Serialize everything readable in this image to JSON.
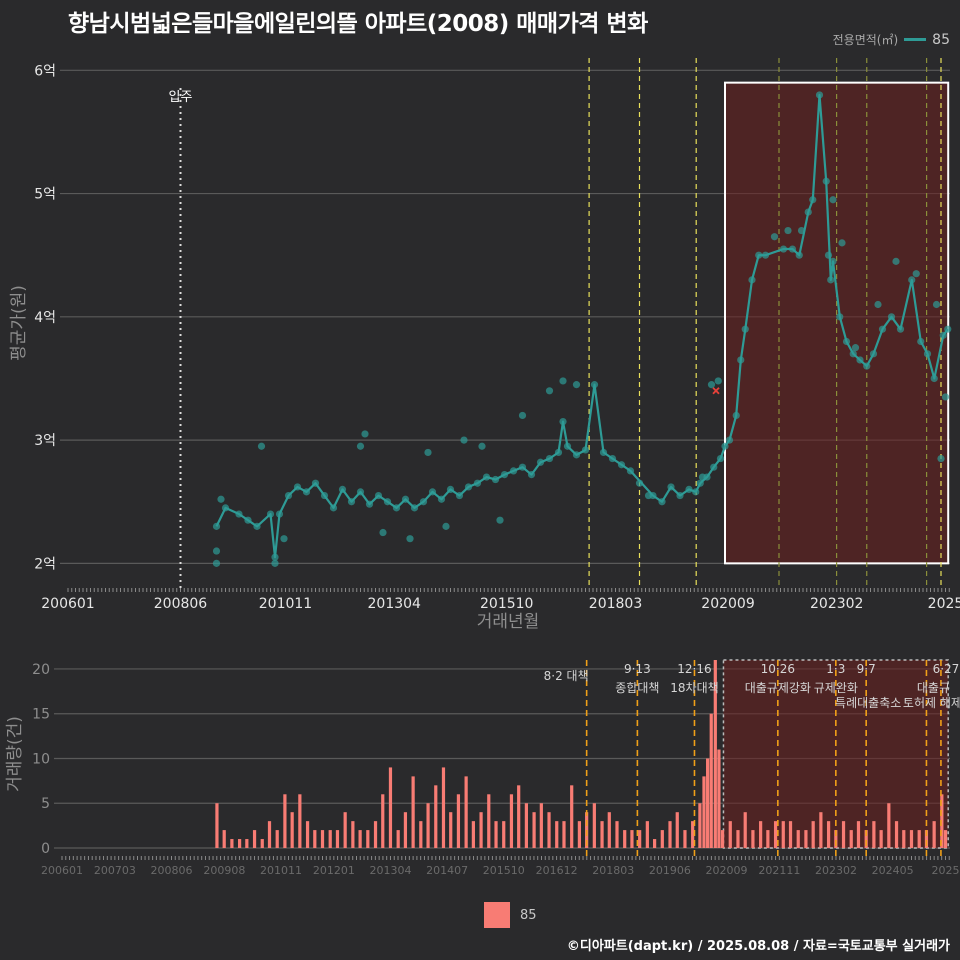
{
  "title": "향남시범넓은들마을에일린의뜰 아파트(2008) 매매가격 변화",
  "legend_top": {
    "title": "전용면적(㎡)",
    "value": "85",
    "color": "#2e9b96"
  },
  "legend_bottom": {
    "value": "85",
    "color": "#f87c74"
  },
  "credit": "©디아파트(dapt.kr) / 2025.08.08 / 자료=국토교통부 실거래가",
  "chart_data": [
    {
      "type": "line",
      "ylabel": "평균가(원)",
      "xlabel": "거래년월",
      "xlim": [
        2006.0,
        2025.6
      ],
      "ylim": [
        1.8,
        6.1
      ],
      "yticks": [
        2,
        3,
        4,
        5,
        6
      ],
      "ytick_labels": [
        "2억",
        "3억",
        "4억",
        "5억",
        "6억"
      ],
      "xticks": [
        2006.0,
        2008.5,
        2010.833,
        2013.25,
        2015.75,
        2018.167,
        2020.667,
        2023.083,
        2025.5
      ],
      "xtick_labels": [
        "200601",
        "200806",
        "201011",
        "201304",
        "201510",
        "201803",
        "202009",
        "202302",
        "2025"
      ],
      "move_in": {
        "x": 2008.5,
        "label": "입주"
      },
      "policy_lines": [
        2017.58,
        2018.7,
        2019.96,
        2021.8,
        2023.08,
        2023.75,
        2025.08,
        2025.4
      ],
      "highlight_box": {
        "x0": 2020.6,
        "x1": 2025.56,
        "y0": 2.0,
        "y1": 5.9
      },
      "series": [
        {
          "name": "85",
          "line": [
            [
              2009.3,
              2.3
            ],
            [
              2009.5,
              2.45
            ],
            [
              2009.8,
              2.4
            ],
            [
              2010.0,
              2.35
            ],
            [
              2010.2,
              2.3
            ],
            [
              2010.5,
              2.4
            ],
            [
              2010.6,
              2.05
            ],
            [
              2010.7,
              2.4
            ],
            [
              2010.9,
              2.55
            ],
            [
              2011.1,
              2.62
            ],
            [
              2011.3,
              2.58
            ],
            [
              2011.5,
              2.65
            ],
            [
              2011.7,
              2.55
            ],
            [
              2011.9,
              2.45
            ],
            [
              2012.1,
              2.6
            ],
            [
              2012.3,
              2.5
            ],
            [
              2012.5,
              2.58
            ],
            [
              2012.7,
              2.48
            ],
            [
              2012.9,
              2.55
            ],
            [
              2013.1,
              2.5
            ],
            [
              2013.3,
              2.45
            ],
            [
              2013.5,
              2.52
            ],
            [
              2013.7,
              2.45
            ],
            [
              2013.9,
              2.5
            ],
            [
              2014.1,
              2.58
            ],
            [
              2014.3,
              2.52
            ],
            [
              2014.5,
              2.6
            ],
            [
              2014.7,
              2.55
            ],
            [
              2014.9,
              2.62
            ],
            [
              2015.1,
              2.65
            ],
            [
              2015.3,
              2.7
            ],
            [
              2015.5,
              2.68
            ],
            [
              2015.7,
              2.72
            ],
            [
              2015.9,
              2.75
            ],
            [
              2016.1,
              2.78
            ],
            [
              2016.3,
              2.72
            ],
            [
              2016.5,
              2.82
            ],
            [
              2016.7,
              2.85
            ],
            [
              2016.9,
              2.9
            ],
            [
              2017.0,
              3.15
            ],
            [
              2017.1,
              2.95
            ],
            [
              2017.3,
              2.88
            ],
            [
              2017.5,
              2.92
            ],
            [
              2017.7,
              3.45
            ],
            [
              2017.9,
              2.9
            ],
            [
              2018.1,
              2.85
            ],
            [
              2018.3,
              2.8
            ],
            [
              2018.5,
              2.75
            ],
            [
              2019.0,
              2.55
            ],
            [
              2019.2,
              2.5
            ],
            [
              2019.4,
              2.62
            ],
            [
              2019.6,
              2.55
            ],
            [
              2019.8,
              2.6
            ],
            [
              2019.95,
              2.58
            ],
            [
              2020.05,
              2.65
            ],
            [
              2020.2,
              2.7
            ],
            [
              2020.35,
              2.78
            ],
            [
              2020.5,
              2.85
            ],
            [
              2020.6,
              2.95
            ],
            [
              2020.7,
              3.0
            ],
            [
              2020.85,
              3.2
            ],
            [
              2020.95,
              3.65
            ],
            [
              2021.05,
              3.9
            ],
            [
              2021.2,
              4.3
            ],
            [
              2021.35,
              4.5
            ],
            [
              2021.5,
              4.5
            ],
            [
              2021.9,
              4.55
            ],
            [
              2022.1,
              4.55
            ],
            [
              2022.25,
              4.5
            ],
            [
              2022.45,
              4.85
            ],
            [
              2022.55,
              4.95
            ],
            [
              2022.7,
              5.8
            ],
            [
              2022.85,
              5.1
            ],
            [
              2022.95,
              4.3
            ],
            [
              2023.0,
              4.45
            ],
            [
              2023.15,
              4.0
            ],
            [
              2023.3,
              3.8
            ],
            [
              2023.45,
              3.7
            ],
            [
              2023.6,
              3.65
            ],
            [
              2023.75,
              3.6
            ],
            [
              2023.9,
              3.7
            ],
            [
              2024.1,
              3.9
            ],
            [
              2024.3,
              4.0
            ],
            [
              2024.5,
              3.9
            ],
            [
              2024.75,
              4.3
            ],
            [
              2024.95,
              3.8
            ],
            [
              2025.1,
              3.7
            ],
            [
              2025.25,
              3.5
            ],
            [
              2025.45,
              3.85
            ],
            [
              2025.55,
              3.9
            ]
          ]
        }
      ],
      "scatter_extra": [
        [
          2009.3,
          2.1
        ],
        [
          2009.3,
          2.0
        ],
        [
          2009.4,
          2.52
        ],
        [
          2010.3,
          2.95
        ],
        [
          2010.6,
          2.0
        ],
        [
          2010.8,
          2.2
        ],
        [
          2012.5,
          2.95
        ],
        [
          2012.6,
          3.05
        ],
        [
          2013.0,
          2.25
        ],
        [
          2013.6,
          2.2
        ],
        [
          2014.0,
          2.9
        ],
        [
          2014.4,
          2.3
        ],
        [
          2014.8,
          3.0
        ],
        [
          2015.2,
          2.95
        ],
        [
          2015.6,
          2.35
        ],
        [
          2016.1,
          3.2
        ],
        [
          2016.7,
          3.4
        ],
        [
          2017.0,
          3.48
        ],
        [
          2017.3,
          3.45
        ],
        [
          2018.7,
          2.65
        ],
        [
          2018.9,
          2.55
        ],
        [
          2020.1,
          2.7
        ],
        [
          2020.3,
          3.45
        ],
        [
          2020.45,
          3.48
        ],
        [
          2021.7,
          4.65
        ],
        [
          2022.0,
          4.7
        ],
        [
          2022.3,
          4.7
        ],
        [
          2022.9,
          4.5
        ],
        [
          2023.0,
          4.95
        ],
        [
          2023.2,
          4.6
        ],
        [
          2023.5,
          3.75
        ],
        [
          2024.0,
          4.1
        ],
        [
          2024.4,
          4.45
        ],
        [
          2024.85,
          4.35
        ],
        [
          2025.3,
          4.1
        ],
        [
          2025.4,
          2.85
        ],
        [
          2025.5,
          3.35
        ]
      ],
      "special_marker": {
        "x": 2020.4,
        "y": 3.4,
        "color": "#e8413a"
      }
    },
    {
      "type": "bar",
      "ylabel": "거래량(건)",
      "xlim": [
        2006.0,
        2025.6
      ],
      "ylim": [
        0,
        21
      ],
      "yticks": [
        0,
        5,
        10,
        15,
        20
      ],
      "xtick_labels": [
        "200601",
        "200703",
        "200806",
        "200908",
        "201011",
        "201201",
        "201304",
        "201407",
        "201510",
        "201612",
        "201803",
        "201906",
        "202009",
        "202111",
        "202302",
        "202405",
        "2025"
      ],
      "xticks": [
        2006.0,
        2007.167,
        2008.417,
        2009.583,
        2010.833,
        2012.0,
        2013.25,
        2014.5,
        2015.75,
        2016.917,
        2018.167,
        2019.417,
        2020.667,
        2021.833,
        2023.083,
        2024.333,
        2025.5
      ],
      "policy_lines": [
        2017.58,
        2018.7,
        2019.96,
        2021.8,
        2023.08,
        2023.75,
        2025.08,
        2025.4
      ],
      "highlight_box": {
        "x0": 2020.6,
        "x1": 2025.56,
        "y0": 0,
        "y1": 21
      },
      "annotations": [
        {
          "x": 2017.58,
          "date": "8·2",
          "text": "대책"
        },
        {
          "x": 2018.7,
          "date": "9·13",
          "text": "종합대책"
        },
        {
          "x": 2019.96,
          "date": "12·16",
          "text": "18차대책"
        },
        {
          "x": 2021.8,
          "date": "10·26",
          "text": "대출규제강화"
        },
        {
          "x": 2023.08,
          "date": "1·3",
          "text": "규제완화"
        },
        {
          "x": 2023.75,
          "date": "9·7",
          "text": "특례대출축소"
        },
        {
          "x": 2025.08,
          "date": "",
          "text": "토허제 해제"
        },
        {
          "x": 2025.4,
          "date": "6·27",
          "text": "대출규"
        }
      ],
      "values_x": [
        2009.42,
        2009.58,
        2009.75,
        2009.92,
        2010.08,
        2010.25,
        2010.42,
        2010.58,
        2010.75,
        2010.92,
        2011.08,
        2011.25,
        2011.42,
        2011.58,
        2011.75,
        2011.92,
        2012.08,
        2012.25,
        2012.42,
        2012.58,
        2012.75,
        2012.92,
        2013.08,
        2013.25,
        2013.42,
        2013.58,
        2013.75,
        2013.92,
        2014.08,
        2014.25,
        2014.42,
        2014.58,
        2014.75,
        2014.92,
        2015.08,
        2015.25,
        2015.42,
        2015.58,
        2015.75,
        2015.92,
        2016.08,
        2016.25,
        2016.42,
        2016.58,
        2016.75,
        2016.92,
        2017.08,
        2017.25,
        2017.42,
        2017.58,
        2017.75,
        2017.92,
        2018.08,
        2018.25,
        2018.42,
        2018.58,
        2018.75,
        2018.92,
        2019.08,
        2019.25,
        2019.42,
        2019.58,
        2019.75,
        2019.92,
        2020.08,
        2020.17,
        2020.25,
        2020.33,
        2020.42,
        2020.5,
        2020.58,
        2020.75,
        2020.92,
        2021.08,
        2021.25,
        2021.42,
        2021.58,
        2021.75,
        2021.92,
        2022.08,
        2022.25,
        2022.42,
        2022.58,
        2022.75,
        2022.92,
        2023.08,
        2023.25,
        2023.42,
        2023.58,
        2023.75,
        2023.92,
        2024.08,
        2024.25,
        2024.42,
        2024.58,
        2024.75,
        2024.92,
        2025.08,
        2025.25,
        2025.42,
        2025.5
      ],
      "values": [
        5,
        2,
        1,
        1,
        1,
        2,
        1,
        3,
        2,
        6,
        4,
        6,
        3,
        2,
        2,
        2,
        2,
        4,
        3,
        2,
        2,
        3,
        6,
        9,
        2,
        4,
        8,
        3,
        5,
        7,
        9,
        4,
        6,
        8,
        3,
        4,
        6,
        3,
        3,
        6,
        7,
        5,
        4,
        5,
        4,
        3,
        3,
        7,
        3,
        4,
        5,
        3,
        4,
        3,
        2,
        2,
        2,
        3,
        1,
        2,
        3,
        4,
        2,
        3,
        5,
        8,
        10,
        15,
        21,
        11,
        2,
        3,
        2,
        4,
        2,
        3,
        2,
        3,
        3,
        3,
        2,
        2,
        3,
        4,
        3,
        2,
        3,
        2,
        3,
        2,
        3,
        2,
        5,
        3,
        2,
        2,
        2,
        2,
        3,
        6,
        2
      ]
    }
  ]
}
